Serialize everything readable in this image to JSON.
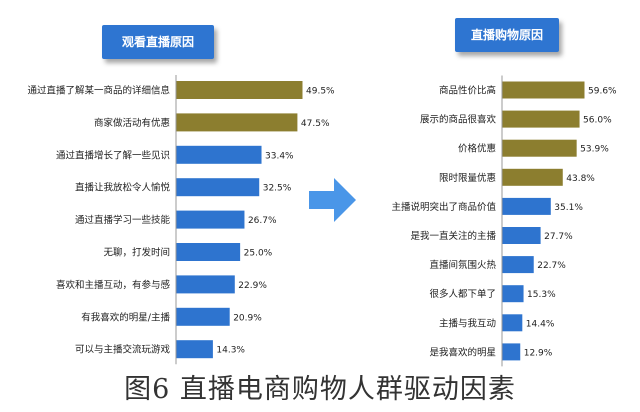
{
  "colors": {
    "gold": "#8C7E2F",
    "blue": "#2E74CF",
    "title_bg": "#2E75D1",
    "arrow": "#4A96E8"
  },
  "caption": "图6 直播电商购物人群驱动因素",
  "chart_data": [
    {
      "type": "bar",
      "orientation": "horizontal",
      "title": "观看直播原因",
      "categories": [
        "通过直播了解某一商品的详细信息",
        "商家做活动有优惠",
        "通过直播增长了解一些见识",
        "直播让我放松令人愉悦",
        "通过直播学习一些技能",
        "无聊，打发时间",
        "喜欢和主播互动，有参与感",
        "有我喜欢的明星/主播",
        "可以与主播交流玩游戏"
      ],
      "values": [
        49.5,
        47.5,
        33.4,
        32.5,
        26.7,
        25.0,
        22.9,
        20.9,
        14.3
      ],
      "value_labels": [
        "49.5%",
        "47.5%",
        "33.4%",
        "32.5%",
        "26.7%",
        "25.0%",
        "22.9%",
        "20.9%",
        "14.3%"
      ],
      "bar_colors": [
        "#8C7E2F",
        "#8C7E2F",
        "#2E74CF",
        "#2E74CF",
        "#2E74CF",
        "#2E74CF",
        "#2E74CF",
        "#2E74CF",
        "#2E74CF"
      ],
      "xlim": [
        0,
        60
      ]
    },
    {
      "type": "bar",
      "orientation": "horizontal",
      "title": "直播购物原因",
      "categories": [
        "商品性价比高",
        "展示的商品很喜欢",
        "价格优惠",
        "限时限量优惠",
        "主播说明突出了商品价值",
        "是我一直关注的主播",
        "直播间氛围火热",
        "很多人都下单了",
        "主播与我互动",
        "是我喜欢的明星"
      ],
      "values": [
        59.6,
        56.0,
        53.9,
        43.8,
        35.1,
        27.7,
        22.7,
        15.3,
        14.4,
        12.9
      ],
      "value_labels": [
        "59.6%",
        "56.0%",
        "53.9%",
        "43.8%",
        "35.1%",
        "27.7%",
        "22.7%",
        "15.3%",
        "14.4%",
        "12.9%"
      ],
      "bar_colors": [
        "#8C7E2F",
        "#8C7E2F",
        "#8C7E2F",
        "#8C7E2F",
        "#2E74CF",
        "#2E74CF",
        "#2E74CF",
        "#2E74CF",
        "#2E74CF",
        "#2E74CF"
      ],
      "xlim": [
        0,
        65
      ]
    }
  ]
}
